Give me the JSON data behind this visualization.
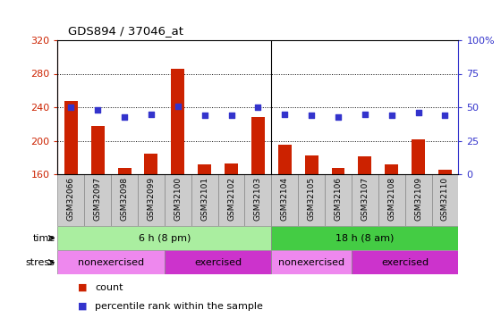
{
  "title": "GDS894 / 37046_at",
  "samples": [
    "GSM32066",
    "GSM32097",
    "GSM32098",
    "GSM32099",
    "GSM32100",
    "GSM32101",
    "GSM32102",
    "GSM32103",
    "GSM32104",
    "GSM32105",
    "GSM32106",
    "GSM32107",
    "GSM32108",
    "GSM32109",
    "GSM32110"
  ],
  "counts": [
    248,
    218,
    168,
    185,
    286,
    172,
    173,
    228,
    195,
    182,
    167,
    181,
    172,
    202,
    165
  ],
  "percentiles": [
    50,
    48,
    43,
    45,
    51,
    44,
    44,
    50,
    45,
    44,
    43,
    45,
    44,
    46,
    44
  ],
  "ylim_left": [
    160,
    320
  ],
  "ylim_right": [
    0,
    100
  ],
  "yticks_left": [
    160,
    200,
    240,
    280,
    320
  ],
  "yticks_right": [
    0,
    25,
    50,
    75,
    100
  ],
  "bar_color": "#cc2200",
  "dot_color": "#3333cc",
  "grid_color": "#000000",
  "time_groups": [
    {
      "label": "6 h (8 pm)",
      "start": 0,
      "end": 8,
      "color": "#aaeea0"
    },
    {
      "label": "18 h (8 am)",
      "start": 8,
      "end": 15,
      "color": "#44cc44"
    }
  ],
  "stress_groups": [
    {
      "label": "nonexercised",
      "start": 0,
      "end": 4,
      "color": "#ee88ee"
    },
    {
      "label": "exercised",
      "start": 4,
      "end": 8,
      "color": "#cc33cc"
    },
    {
      "label": "nonexercised",
      "start": 8,
      "end": 11,
      "color": "#ee88ee"
    },
    {
      "label": "exercised",
      "start": 11,
      "end": 15,
      "color": "#cc33cc"
    }
  ],
  "bg_color": "#ffffff",
  "plot_bg_color": "#ffffff",
  "tick_area_color": "#d0d0d0",
  "time_label": "time",
  "stress_label": "stress",
  "legend_count_color": "#cc2200",
  "legend_dot_color": "#3333cc",
  "legend_count_label": "count",
  "legend_percentile_label": "percentile rank within the sample"
}
